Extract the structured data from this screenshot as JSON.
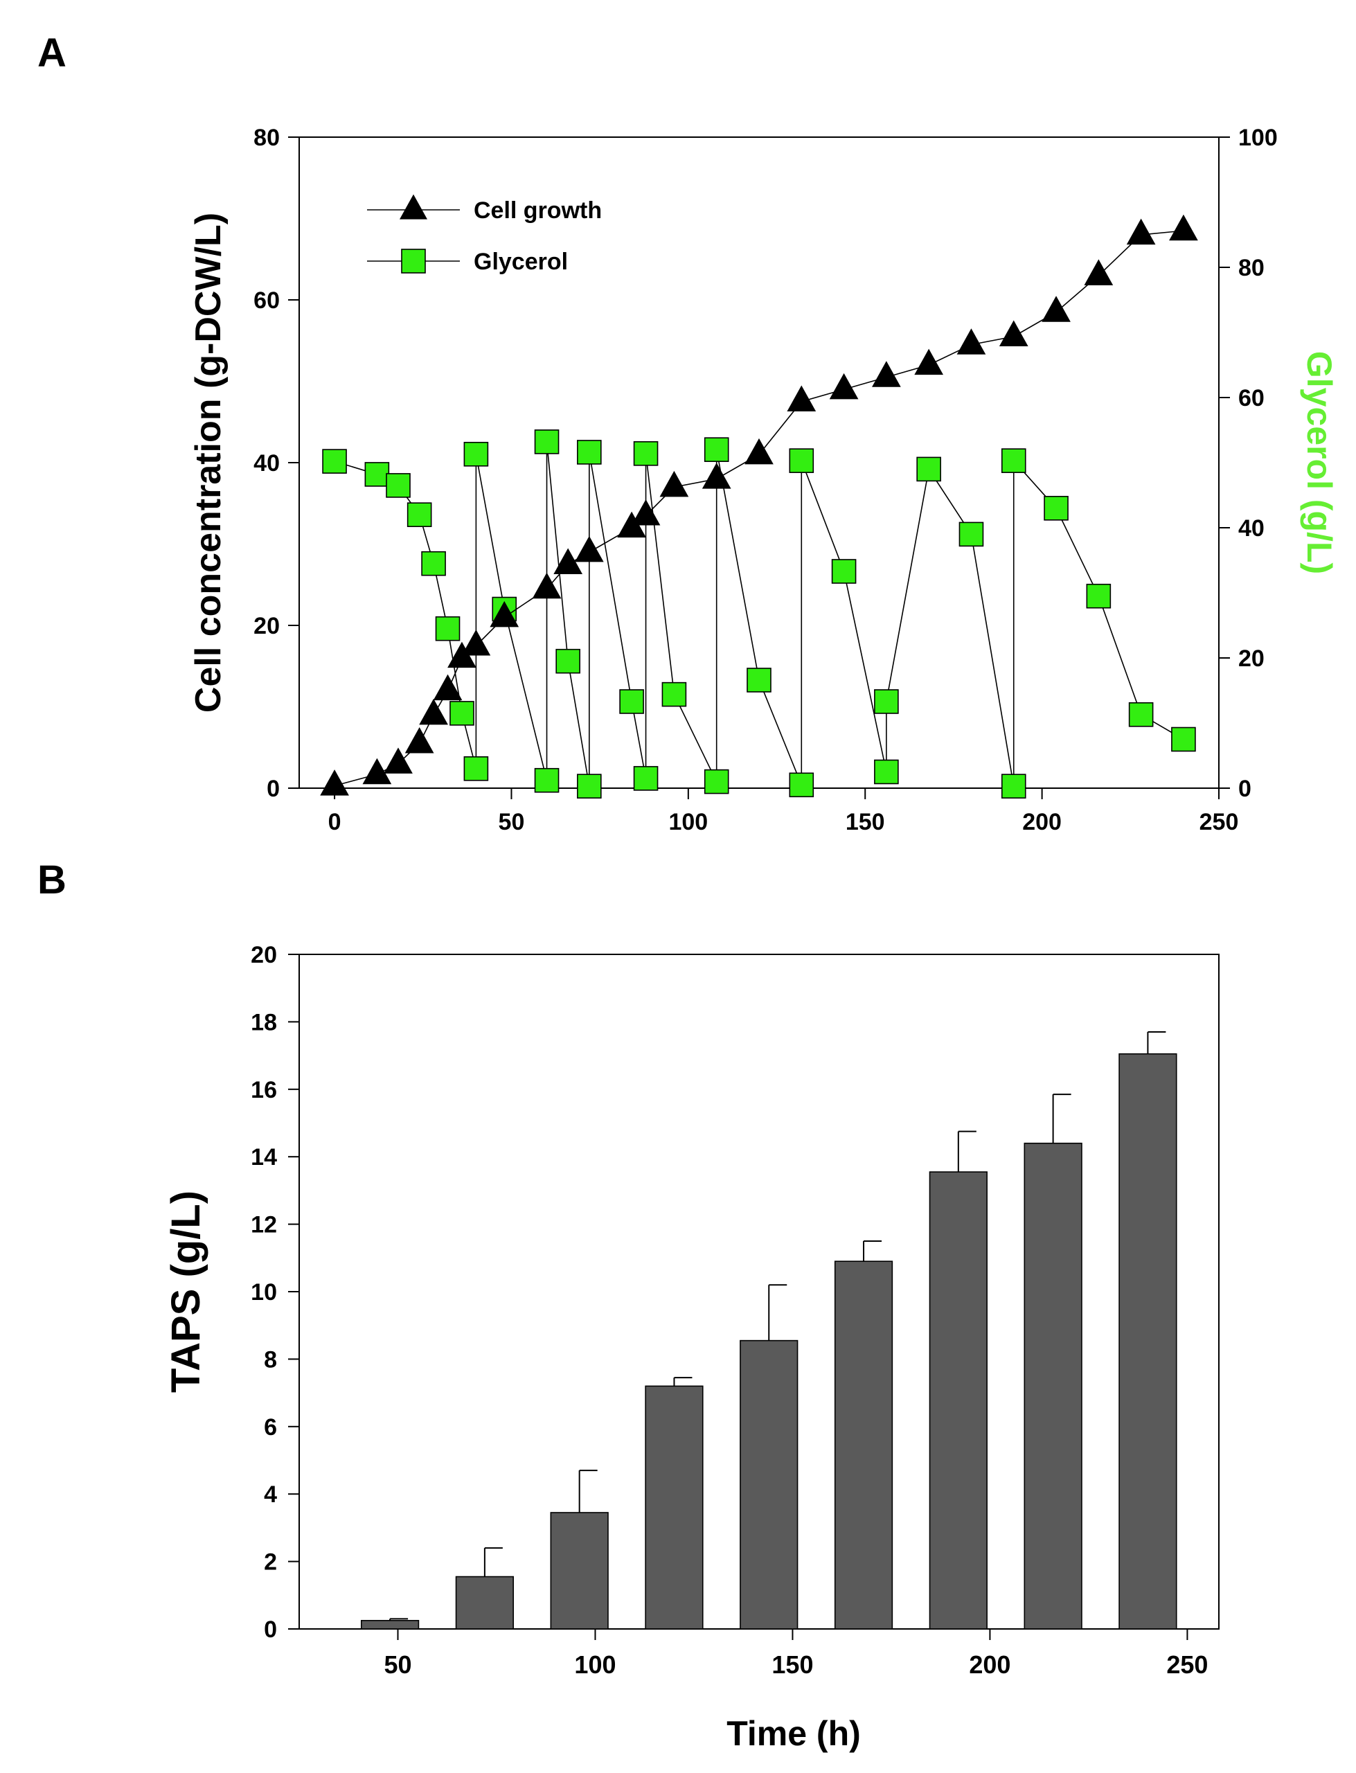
{
  "panels": {
    "a_label": "A",
    "b_label": "B"
  },
  "colors": {
    "axis": "#000000",
    "cell_marker": "#000000",
    "glycerol_marker": "#33ee11",
    "glycerol_label": "#66ee33",
    "bar_fill": "#5a5a5a"
  },
  "chart_data": [
    {
      "type": "line",
      "panel": "A",
      "title": "",
      "xlabel": "",
      "ylabel": "Cell concentration (g-DCW/L)",
      "y2label": "Glycerol  (g/L)",
      "xlim": [
        -10,
        250
      ],
      "ylim": [
        0,
        80
      ],
      "y2lim": [
        0,
        100
      ],
      "xticks": [
        0,
        50,
        100,
        150,
        200,
        250
      ],
      "yticks": [
        0,
        20,
        40,
        60,
        80
      ],
      "y2ticks": [
        0,
        20,
        40,
        60,
        80,
        100
      ],
      "grid": false,
      "legend_position": "top-left",
      "series": [
        {
          "name": "Cell growth",
          "axis": "left",
          "marker": "triangle",
          "x": [
            0,
            12,
            18,
            24,
            28,
            32,
            36,
            40,
            48,
            60,
            66,
            72,
            84,
            88,
            96,
            108,
            120,
            132,
            144,
            156,
            168,
            180,
            192,
            204,
            216,
            228,
            240
          ],
          "y": [
            0.3,
            1.7,
            3.0,
            5.5,
            9.0,
            12.0,
            16.0,
            17.5,
            21.0,
            24.5,
            27.5,
            29.0,
            32.0,
            33.5,
            37.0,
            38.0,
            41.0,
            47.5,
            49.0,
            50.5,
            52.0,
            54.5,
            55.5,
            58.5,
            63.0,
            68.0,
            68.5
          ]
        },
        {
          "name": "Glycerol",
          "axis": "right",
          "marker": "square",
          "x": [
            0,
            12,
            18,
            24,
            28,
            32,
            36,
            40,
            40,
            48,
            60,
            60,
            66,
            72,
            72,
            84,
            88,
            88,
            96,
            108,
            108,
            120,
            132,
            132,
            144,
            156,
            156,
            168,
            180,
            192,
            192,
            204,
            216,
            228,
            240
          ],
          "y": [
            50.2,
            48.2,
            46.5,
            42.0,
            34.5,
            24.5,
            11.5,
            3.0,
            51.3,
            27.5,
            1.2,
            53.2,
            19.5,
            0.3,
            51.6,
            13.3,
            1.5,
            51.4,
            14.4,
            1.0,
            52.0,
            16.6,
            0.5,
            50.3,
            33.3,
            2.5,
            13.3,
            49.0,
            39.0,
            0.3,
            50.3,
            43.0,
            29.5,
            11.3,
            7.5
          ]
        }
      ]
    },
    {
      "type": "bar",
      "panel": "B",
      "title": "",
      "xlabel": "Time (h)",
      "ylabel": "TAPS  (g/L)",
      "xlim": [
        25,
        258
      ],
      "ylim": [
        0,
        20
      ],
      "xticks": [
        50,
        100,
        150,
        200,
        250
      ],
      "yticks": [
        0,
        2,
        4,
        6,
        8,
        10,
        12,
        14,
        16,
        18,
        20
      ],
      "grid": false,
      "x": [
        48,
        72,
        96,
        120,
        144,
        168,
        192,
        216,
        240
      ],
      "values": [
        0.25,
        1.55,
        3.45,
        7.2,
        8.55,
        10.9,
        13.55,
        14.4,
        17.05
      ],
      "errors": [
        0.05,
        0.85,
        1.25,
        0.25,
        1.65,
        0.6,
        1.2,
        1.45,
        0.65
      ]
    }
  ]
}
